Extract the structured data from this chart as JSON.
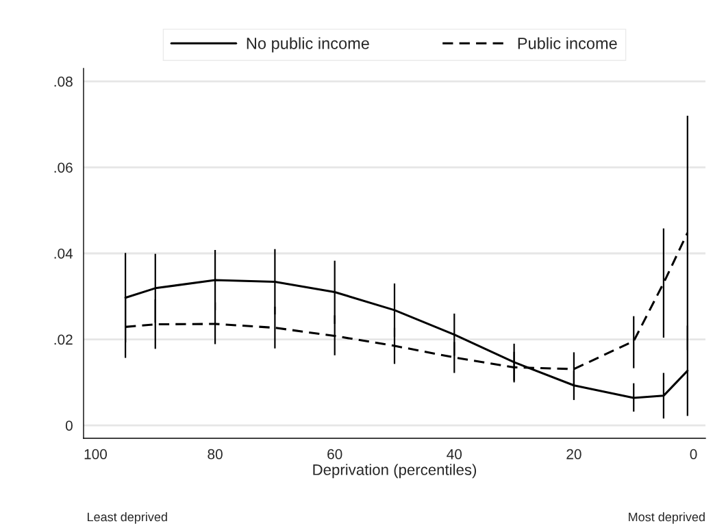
{
  "chart_data": {
    "type": "line",
    "xlabel": "Deprivation (percentiles)",
    "x": [
      95,
      90,
      80,
      70,
      60,
      50,
      40,
      30,
      20,
      10,
      5,
      1
    ],
    "series": [
      {
        "name": "No public income",
        "color": "#000000",
        "line_style": "solid",
        "values": [
          0.0297,
          0.0319,
          0.0338,
          0.0334,
          0.031,
          0.0268,
          0.0211,
          0.0147,
          0.0093,
          0.0064,
          0.0069,
          0.0127
        ],
        "errors": [
          [
            0.0193,
            0.0401
          ],
          [
            0.0239,
            0.0399
          ],
          [
            0.0268,
            0.0408
          ],
          [
            0.0258,
            0.041
          ],
          [
            0.0236,
            0.0383
          ],
          [
            0.0206,
            0.033
          ],
          [
            0.0162,
            0.026
          ],
          [
            0.0104,
            0.019
          ],
          [
            0.0059,
            0.0127
          ],
          [
            0.0032,
            0.0098
          ],
          [
            0.0016,
            0.0122
          ],
          [
            0.0022,
            0.0232
          ]
        ]
      },
      {
        "name": "Public income",
        "color": "#000000",
        "line_style": "dashed",
        "values": [
          0.0229,
          0.0235,
          0.0236,
          0.0227,
          0.0208,
          0.0185,
          0.0158,
          0.0135,
          0.0131,
          0.0196,
          0.0331,
          0.0448
        ],
        "errors": [
          [
            0.0157,
            0.0301
          ],
          [
            0.0178,
            0.0293
          ],
          [
            0.0189,
            0.0286
          ],
          [
            0.0179,
            0.0276
          ],
          [
            0.0163,
            0.0256
          ],
          [
            0.0143,
            0.0227
          ],
          [
            0.0122,
            0.0194
          ],
          [
            0.01,
            0.0171
          ],
          [
            0.0094,
            0.017
          ],
          [
            0.0133,
            0.0254
          ],
          [
            0.0204,
            0.0458
          ],
          [
            0.0175,
            0.072
          ]
        ]
      }
    ],
    "xlim": [
      102,
      -2
    ],
    "xticks": [
      100,
      80,
      60,
      40,
      20,
      0
    ],
    "ylim": [
      -0.003,
      0.083
    ],
    "yticks": [
      0,
      {
        "value": 0.02,
        "label": ".02"
      },
      {
        "value": 0.04,
        "label": ".04"
      },
      {
        "value": 0.06,
        "label": ".06"
      },
      {
        "value": 0.08,
        "label": ".08"
      }
    ],
    "grid": "y",
    "legend": "top",
    "marker": "none",
    "annotations": [
      "Least deprived",
      "Most deprived"
    ]
  }
}
